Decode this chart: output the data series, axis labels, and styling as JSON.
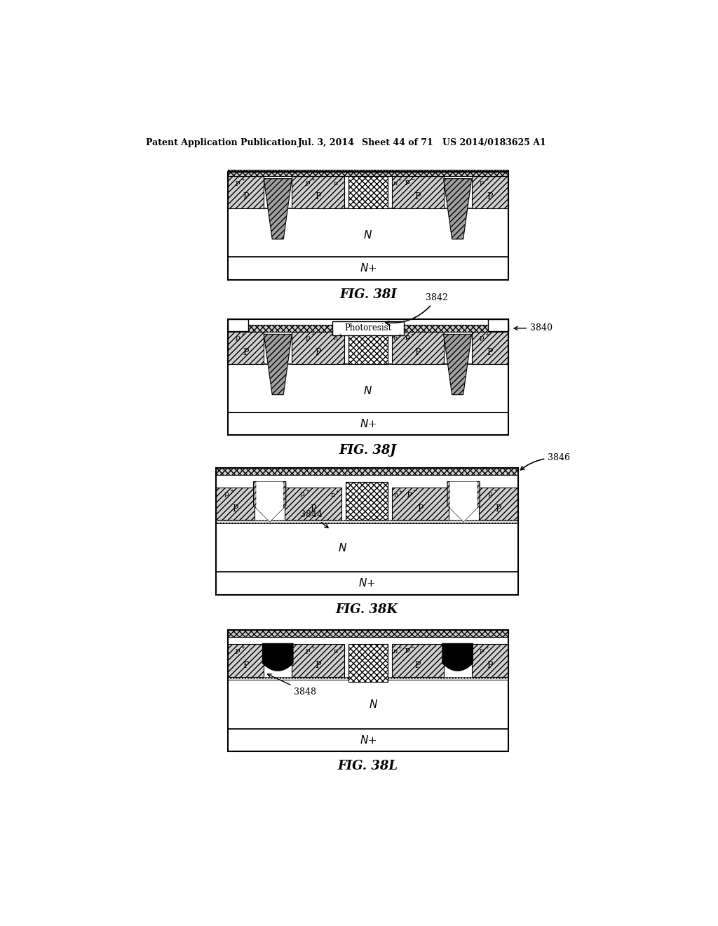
{
  "title_line1": "Patent Application Publication",
  "title_line2": "Jul. 3, 2014",
  "title_line3": "Sheet 44 of 71",
  "title_line4": "US 2014/0183625 A1",
  "fig_labels": [
    "FIG. 38I",
    "FIG. 38J",
    "FIG. 38K",
    "FIG. 38L"
  ],
  "bg_color": "#ffffff"
}
